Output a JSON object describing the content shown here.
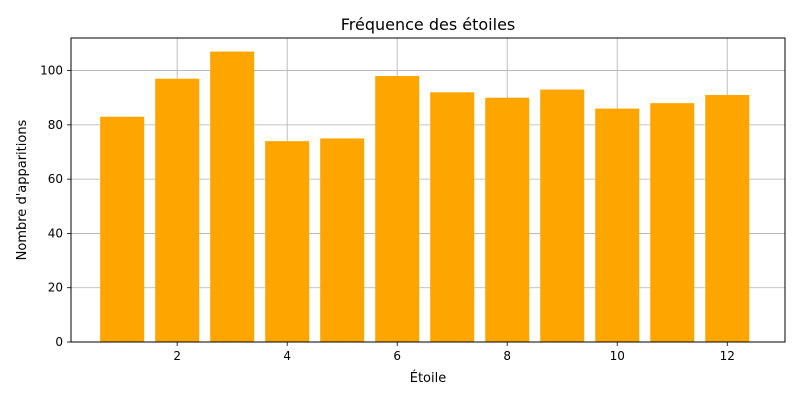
{
  "chart_data": {
    "type": "bar",
    "title": "Fréquence des étoiles",
    "xlabel": "Étoile",
    "ylabel": "Nombre d'apparitions",
    "x": [
      1,
      2,
      3,
      4,
      5,
      6,
      7,
      8,
      9,
      10,
      11,
      12
    ],
    "values": [
      83,
      97,
      107,
      74,
      75,
      98,
      92,
      90,
      93,
      86,
      88,
      91
    ],
    "xlim": [
      0.07,
      13.05
    ],
    "ylim": [
      0,
      112
    ],
    "xticks": [
      2,
      4,
      6,
      8,
      10,
      12
    ],
    "yticks": [
      0,
      20,
      40,
      60,
      80,
      100
    ],
    "grid": true,
    "bar_color": "#FFA500"
  }
}
